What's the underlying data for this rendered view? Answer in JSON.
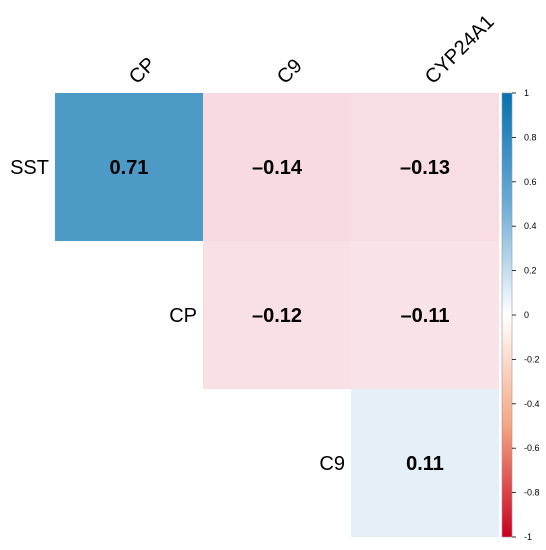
{
  "chart_data": {
    "type": "heatmap",
    "title": "",
    "columns": [
      "CP",
      "C9",
      "CYP24A1"
    ],
    "rows": [
      "SST",
      "CP",
      "C9"
    ],
    "cells": [
      {
        "row": "SST",
        "col": "CP",
        "value": 0.71,
        "label": "0.71"
      },
      {
        "row": "SST",
        "col": "C9",
        "value": -0.14,
        "label": "–0.14"
      },
      {
        "row": "SST",
        "col": "CYP24A1",
        "value": -0.13,
        "label": "–0.13"
      },
      {
        "row": "CP",
        "col": "C9",
        "value": -0.12,
        "label": "–0.12"
      },
      {
        "row": "CP",
        "col": "CYP24A1",
        "value": -0.11,
        "label": "–0.11"
      },
      {
        "row": "C9",
        "col": "CYP24A1",
        "value": 0.11,
        "label": "0.11"
      }
    ],
    "colorbar": {
      "range": [
        -1,
        1
      ],
      "ticks": [
        "1",
        "0.8",
        "0.6",
        "0.4",
        "0.2",
        "0",
        "-0.2",
        "-0.4",
        "-0.6",
        "-0.8",
        "-1"
      ],
      "colors": {
        "negative": "#CA0020",
        "neutral": "#FFFFFF",
        "positive": "#0571B0"
      }
    }
  }
}
